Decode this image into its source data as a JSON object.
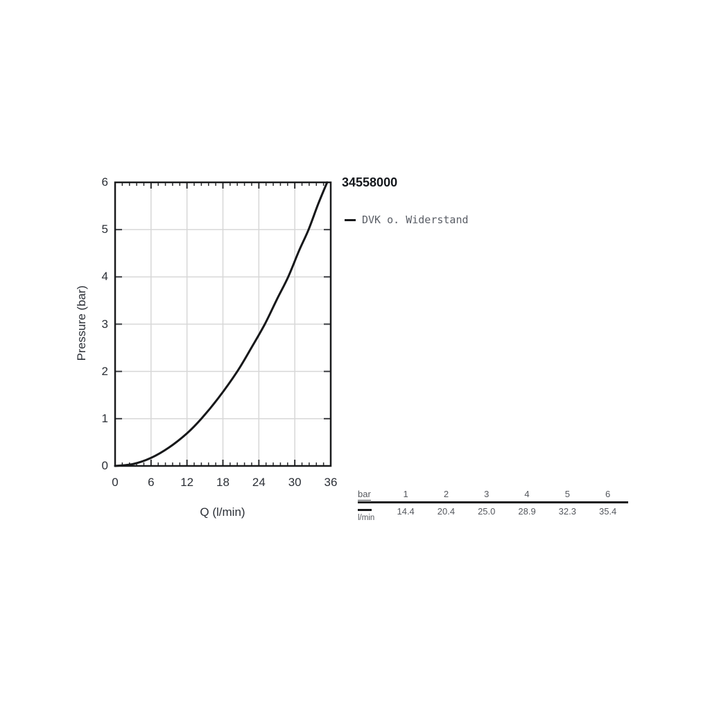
{
  "title": "34558000",
  "legend": {
    "label": "DVK o. Widerstand",
    "line_color": "#17181a"
  },
  "chart_data": {
    "type": "line",
    "title": "34558000",
    "xlabel": "Q (l/min)",
    "ylabel": "Pressure (bar)",
    "xlim": [
      0,
      36
    ],
    "ylim": [
      0,
      6
    ],
    "x_major_ticks": [
      0,
      6,
      12,
      18,
      24,
      30,
      36
    ],
    "x_minor_step": 1.2,
    "y_major_ticks": [
      0,
      1,
      2,
      3,
      4,
      5,
      6
    ],
    "grid": true,
    "grid_color": "#d7d7d7",
    "frame_color": "#1a1b1d",
    "legend_position": "right-of-plot-top",
    "series": [
      {
        "name": "DVK o. Widerstand",
        "color": "#17181a",
        "points": [
          [
            0,
            0
          ],
          [
            3,
            0.04
          ],
          [
            6,
            0.17
          ],
          [
            9,
            0.39
          ],
          [
            12,
            0.69
          ],
          [
            14.4,
            1.0
          ],
          [
            17.2,
            1.43
          ],
          [
            20.4,
            2.0
          ],
          [
            22.8,
            2.51
          ],
          [
            25.0,
            3.0
          ],
          [
            27.0,
            3.52
          ],
          [
            28.9,
            4.0
          ],
          [
            30.7,
            4.55
          ],
          [
            32.3,
            5.0
          ],
          [
            33.9,
            5.54
          ],
          [
            35.4,
            6.0
          ]
        ]
      }
    ]
  },
  "table": {
    "header_label": "bar",
    "header_values": [
      "1",
      "2",
      "3",
      "4",
      "5",
      "6"
    ],
    "unit_label": "l/min",
    "values": [
      "14.4",
      "20.4",
      "25.0",
      "28.9",
      "32.3",
      "35.4"
    ]
  }
}
